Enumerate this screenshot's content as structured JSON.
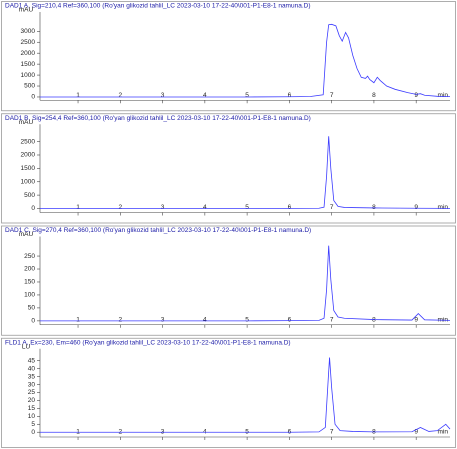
{
  "chart_data": [
    {
      "type": "line",
      "title": "DAD1 A, Sig=210,4 Ref=360,100 (Ro'yan glikozid tahlil_LC 2023-03-10 17-22-40\\001-P1-E8-1 namuna.D)",
      "ylabel": "mAU",
      "xlabel": "min",
      "xlim": [
        0.1,
        9.8
      ],
      "ylim": [
        -150,
        3700
      ],
      "xticks": [
        1,
        2,
        3,
        4,
        5,
        6,
        7,
        8,
        9
      ],
      "yticks": [
        0,
        500,
        1000,
        1500,
        2000,
        2500,
        3000
      ],
      "series": [
        {
          "color": "#3b3bff",
          "x": [
            0.1,
            1,
            2,
            3,
            4,
            5,
            6,
            6.5,
            6.8,
            6.88,
            6.93,
            7.0,
            7.1,
            7.18,
            7.25,
            7.33,
            7.4,
            7.5,
            7.6,
            7.7,
            7.8,
            7.85,
            7.9,
            8.0,
            8.08,
            8.15,
            8.3,
            8.5,
            8.8,
            9.0,
            9.1,
            9.2,
            9.5,
            9.8
          ],
          "values": [
            0,
            0,
            0,
            0,
            0,
            0,
            10,
            20,
            100,
            2500,
            3300,
            3320,
            3250,
            2800,
            2550,
            2950,
            2700,
            1900,
            1300,
            900,
            850,
            950,
            800,
            650,
            900,
            750,
            500,
            350,
            200,
            120,
            150,
            80,
            30,
            20
          ]
        }
      ]
    },
    {
      "type": "line",
      "title": "DAD1 B, Sig=254,4 Ref=360,100 (Ro'yan glikozid tahlil_LC 2023-03-10 17-22-40\\001-P1-E8-1 namuna.D)",
      "ylabel": "mAU",
      "xlabel": "min",
      "xlim": [
        0.1,
        9.8
      ],
      "ylim": [
        -150,
        3000
      ],
      "xticks": [
        1,
        2,
        3,
        4,
        5,
        6,
        7,
        8,
        9
      ],
      "yticks": [
        0,
        500,
        1000,
        1500,
        2000,
        2500
      ],
      "series": [
        {
          "color": "#3b3bff",
          "x": [
            0.1,
            1,
            2,
            3,
            4,
            5,
            6,
            6.7,
            6.82,
            6.88,
            6.93,
            6.98,
            7.05,
            7.15,
            7.3,
            8,
            9,
            9.8
          ],
          "values": [
            0,
            0,
            0,
            0,
            0,
            0,
            5,
            10,
            50,
            1200,
            2700,
            1500,
            300,
            80,
            40,
            20,
            10,
            5
          ]
        }
      ]
    },
    {
      "type": "line",
      "title": "DAD1 C, Sig=270,4 Ref=360,100 (Ro'yan glikozid tahlil_LC 2023-03-10 17-22-40\\001-P1-E8-1 namuna.D)",
      "ylabel": "mAU",
      "xlabel": "min",
      "xlim": [
        0.1,
        9.8
      ],
      "ylim": [
        -15,
        310
      ],
      "xticks": [
        1,
        2,
        3,
        4,
        5,
        6,
        7,
        8,
        9
      ],
      "yticks": [
        0,
        50,
        100,
        150,
        200,
        250
      ],
      "series": [
        {
          "color": "#3b3bff",
          "x": [
            0.1,
            1,
            2,
            3,
            4,
            5,
            6,
            6.7,
            6.82,
            6.88,
            6.93,
            6.98,
            7.05,
            7.15,
            7.3,
            8,
            8.9,
            9.05,
            9.2,
            9.8
          ],
          "values": [
            0,
            0,
            0,
            0,
            0,
            0,
            1,
            2,
            10,
            120,
            290,
            160,
            40,
            15,
            10,
            5,
            3,
            28,
            4,
            2
          ]
        }
      ]
    },
    {
      "type": "line",
      "title": "FLD1 A, Ex=230, Em=460 (Ro'yan glikozid tahlil_LC 2023-03-10 17-22-40\\001-P1-E8-1 namuna.D)",
      "ylabel": "LU",
      "xlabel": "min",
      "xlim": [
        0.1,
        9.8
      ],
      "ylim": [
        -3,
        50
      ],
      "xticks": [
        1,
        2,
        3,
        4,
        5,
        6,
        7,
        8,
        9
      ],
      "yticks": [
        0,
        5,
        10,
        15,
        20,
        25,
        30,
        35,
        40,
        45
      ],
      "series": [
        {
          "color": "#3b3bff",
          "x": [
            0.1,
            1,
            2,
            3,
            4,
            5,
            6,
            6.7,
            6.85,
            6.9,
            6.95,
            7.0,
            7.08,
            7.2,
            7.5,
            8,
            8.9,
            9.1,
            9.3,
            9.5,
            9.7,
            9.8
          ],
          "values": [
            0,
            0,
            0,
            0,
            0,
            0,
            0,
            0.2,
            3,
            25,
            47,
            28,
            5,
            1,
            0.5,
            0.2,
            0.3,
            3,
            0.5,
            1,
            5,
            2
          ]
        }
      ]
    }
  ]
}
